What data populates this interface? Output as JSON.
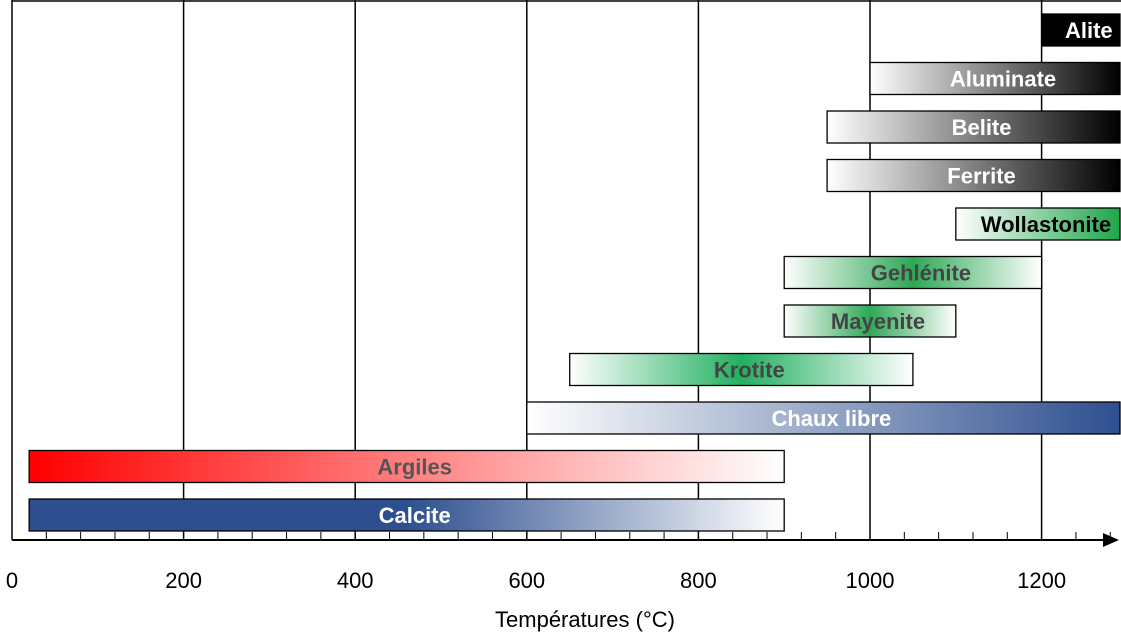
{
  "chart_data": {
    "type": "bar",
    "orientation": "horizontal",
    "title": "",
    "xlabel": "Températures (°C)",
    "ylabel": "",
    "xlim": [
      0,
      1300
    ],
    "x_ticks": [
      0,
      200,
      400,
      600,
      800,
      1000,
      1200
    ],
    "x_tick_labels": [
      "0",
      "200",
      "400",
      "600",
      "800",
      "1000",
      "1200"
    ],
    "grid": "vertical lines at major ticks",
    "legend": "none",
    "series": [
      {
        "name": "Alite",
        "start": 1200,
        "end": 1300,
        "gradient": [
          "#000000",
          "#000000"
        ],
        "label_color": "#ffffff"
      },
      {
        "name": "Aluminate",
        "start": 1000,
        "end": 1300,
        "gradient": [
          "#ffffff",
          "#000000"
        ],
        "label_color": "#ffffff"
      },
      {
        "name": "Belite",
        "start": 950,
        "end": 1300,
        "gradient": [
          "#ffffff",
          "#000000"
        ],
        "label_color": "#ffffff"
      },
      {
        "name": "Ferrite",
        "start": 950,
        "end": 1300,
        "gradient": [
          "#ffffff",
          "#000000"
        ],
        "label_color": "#ffffff"
      },
      {
        "name": "Wollastonite",
        "start": 1100,
        "end": 1300,
        "gradient": [
          "#ffffff",
          "#1fa64a"
        ],
        "label_color": "#000000"
      },
      {
        "name": "Gehlénite",
        "start": 900,
        "end": 1200,
        "gradient": [
          "#ffffff",
          "#2ea855",
          "#ffffff"
        ],
        "label_color": "#444444"
      },
      {
        "name": "Mayenite",
        "start": 900,
        "end": 1100,
        "gradient": [
          "#ffffff",
          "#2ea855",
          "#ffffff"
        ],
        "label_color": "#444444"
      },
      {
        "name": "Krotite",
        "start": 650,
        "end": 1050,
        "gradient": [
          "#ffffff",
          "#22b060",
          "#ffffff"
        ],
        "label_color": "#444444"
      },
      {
        "name": "Chaux libre",
        "start": 600,
        "end": 1300,
        "gradient": [
          "#ffffff",
          "#2e4f8f"
        ],
        "label_color": "#ffffff"
      },
      {
        "name": "Argiles",
        "start": 20,
        "end": 900,
        "gradient": [
          "#ff0000",
          "#ffffff"
        ],
        "label_color": "#555555"
      },
      {
        "name": "Calcite",
        "start": 20,
        "end": 900,
        "gradient": [
          "#2e4f8f",
          "#2e4f8f",
          "#ffffff"
        ],
        "label_color": "#ffffff"
      }
    ]
  }
}
